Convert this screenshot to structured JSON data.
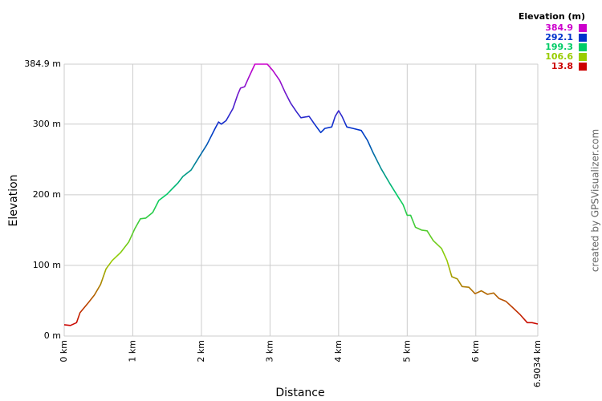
{
  "chart_data": {
    "type": "line",
    "x_label": "Distance",
    "y_label": "Elevation",
    "legend_title": "Elevation (m)",
    "credit": "created by GPSVisualizer.com",
    "color_scale": [
      {
        "value": 384.9,
        "color": "#cc00cc"
      },
      {
        "value": 292.1,
        "color": "#0033cc"
      },
      {
        "value": 199.3,
        "color": "#00cc66"
      },
      {
        "value": 106.6,
        "color": "#99cc00"
      },
      {
        "value": 13.8,
        "color": "#cc0000"
      }
    ],
    "x": [
      0,
      0.09,
      0.18,
      0.23,
      0.35,
      0.44,
      0.53,
      0.61,
      0.7,
      0.82,
      0.94,
      1.03,
      1.11,
      1.19,
      1.29,
      1.38,
      1.5,
      1.58,
      1.66,
      1.73,
      1.85,
      1.97,
      2.08,
      2.2,
      2.25,
      2.29,
      2.36,
      2.46,
      2.53,
      2.57,
      2.63,
      2.69,
      2.78,
      2.87,
      2.96,
      3.04,
      3.14,
      3.22,
      3.3,
      3.39,
      3.45,
      3.57,
      3.65,
      3.74,
      3.8,
      3.9,
      3.95,
      4.0,
      4.05,
      4.12,
      4.21,
      4.33,
      4.42,
      4.5,
      4.62,
      4.74,
      4.86,
      4.94,
      5.0,
      5.05,
      5.12,
      5.21,
      5.29,
      5.38,
      5.5,
      5.58,
      5.65,
      5.73,
      5.8,
      5.9,
      5.99,
      6.08,
      6.17,
      6.26,
      6.34,
      6.44,
      6.53,
      6.65,
      6.75,
      6.82,
      6.9034
    ],
    "values": [
      16,
      15,
      19,
      33,
      47,
      58,
      73,
      95,
      107,
      118,
      133,
      152,
      166,
      167,
      175,
      192,
      201,
      209,
      217,
      226,
      235,
      254,
      271,
      294,
      303,
      300,
      305,
      322,
      342,
      351,
      353,
      366,
      384.9,
      384.9,
      384.9,
      376,
      362,
      345,
      330,
      317,
      309,
      311,
      300,
      288,
      294,
      296,
      311,
      319,
      311,
      296,
      294,
      291,
      277,
      260,
      237,
      217,
      198,
      186,
      171,
      171,
      154,
      150,
      149,
      135,
      124,
      107,
      84,
      81,
      70,
      69,
      60,
      64,
      59,
      61,
      53,
      49,
      41,
      30,
      19,
      19,
      17
    ],
    "xlim": [
      0,
      6.9034
    ],
    "ylim": [
      0,
      384.9
    ],
    "xticks": [
      {
        "value": 0,
        "label": "0 km"
      },
      {
        "value": 1,
        "label": "1 km"
      },
      {
        "value": 2,
        "label": "2 km"
      },
      {
        "value": 3,
        "label": "3 km"
      },
      {
        "value": 4,
        "label": "4 km"
      },
      {
        "value": 5,
        "label": "5 km"
      },
      {
        "value": 6,
        "label": "6 km"
      },
      {
        "value": 6.9034,
        "label": "6.9034 km"
      }
    ],
    "yticks": [
      {
        "value": 0,
        "label": "0 m"
      },
      {
        "value": 100,
        "label": "100 m"
      },
      {
        "value": 200,
        "label": "200 m"
      },
      {
        "value": 300,
        "label": "300 m"
      },
      {
        "value": 384.9,
        "label": "384.9 m"
      }
    ],
    "grid": true
  }
}
